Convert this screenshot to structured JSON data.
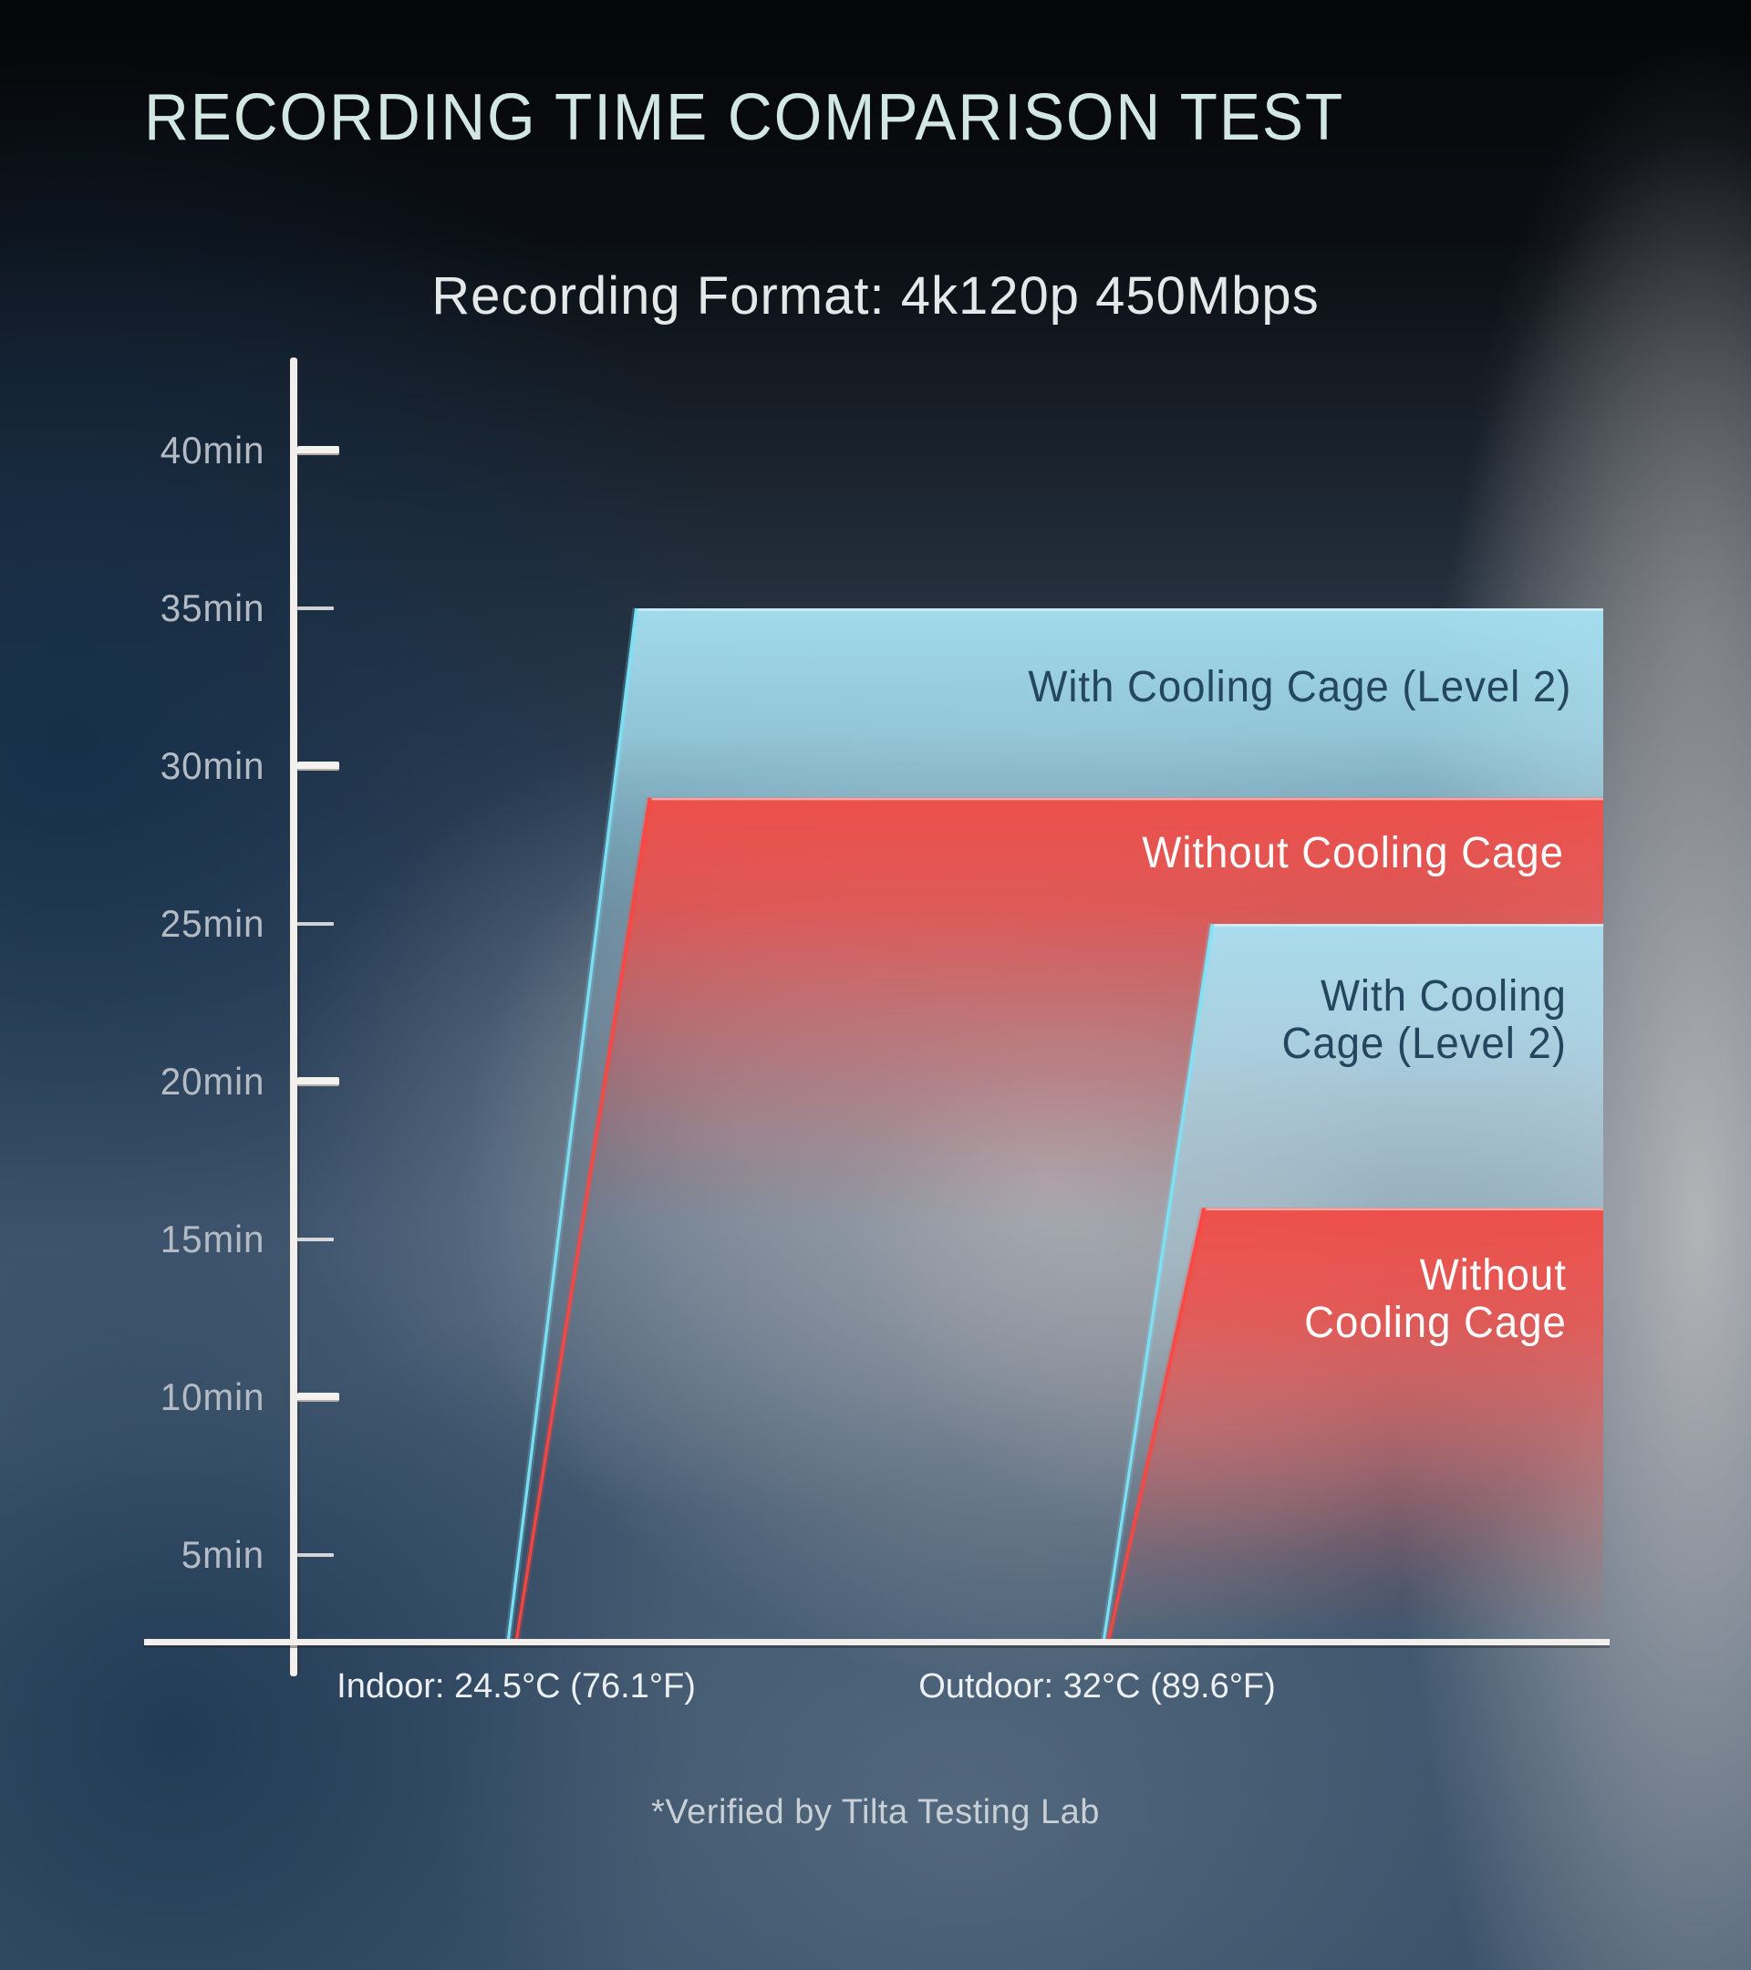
{
  "title": "RECORDING TIME COMPARISON TEST",
  "subtitle": "Recording Format: 4k120p 450Mbps",
  "footnote": "*Verified by Tilta Testing Lab",
  "chart_data": {
    "type": "bar",
    "title": "RECORDING TIME COMPARISON TEST",
    "subtitle": "Recording Format: 4k120p 450Mbps",
    "categories": [
      "Indoor: 24.5°C (76.1°F)",
      "Outdoor: 32°C (89.6°F)"
    ],
    "series": [
      {
        "name": "With Cooling Cage (Level 2)",
        "color": "#a7e2f4",
        "edge_color": "#7ce4f8",
        "values": [
          35,
          25
        ]
      },
      {
        "name": "Without Cooling Cage",
        "color": "#f24a44",
        "edge_color": "#ff4540",
        "values": [
          29,
          16
        ]
      }
    ],
    "y_axis": {
      "unit": "min",
      "tick_values": [
        40,
        35,
        30,
        25,
        20,
        15,
        10,
        5
      ],
      "tick_labels": [
        "40min",
        "35min",
        "30min",
        "25min",
        "20min",
        "15min",
        "10min",
        "5min"
      ],
      "range": [
        0,
        43
      ],
      "grid": false
    },
    "legend_position": "labels-on-bars",
    "annotations": {
      "indoor_with_cage": "With Cooling Cage (Level 2)",
      "indoor_without_cage": "Without Cooling Cage",
      "outdoor_with_cage": [
        "With Cooling",
        "Cage (Level 2)"
      ],
      "outdoor_without_cage": [
        "Without",
        "Cooling Cage"
      ]
    }
  },
  "colors": {
    "accent_cyan": "#a7e2f4",
    "accent_red": "#f24a44",
    "title_text": "#d2e7e2",
    "axis": "#f2efec",
    "tick_label_text": "#b4bbc4",
    "bar_label_dark": "#24465f",
    "bar_label_light": "#ffffff"
  }
}
